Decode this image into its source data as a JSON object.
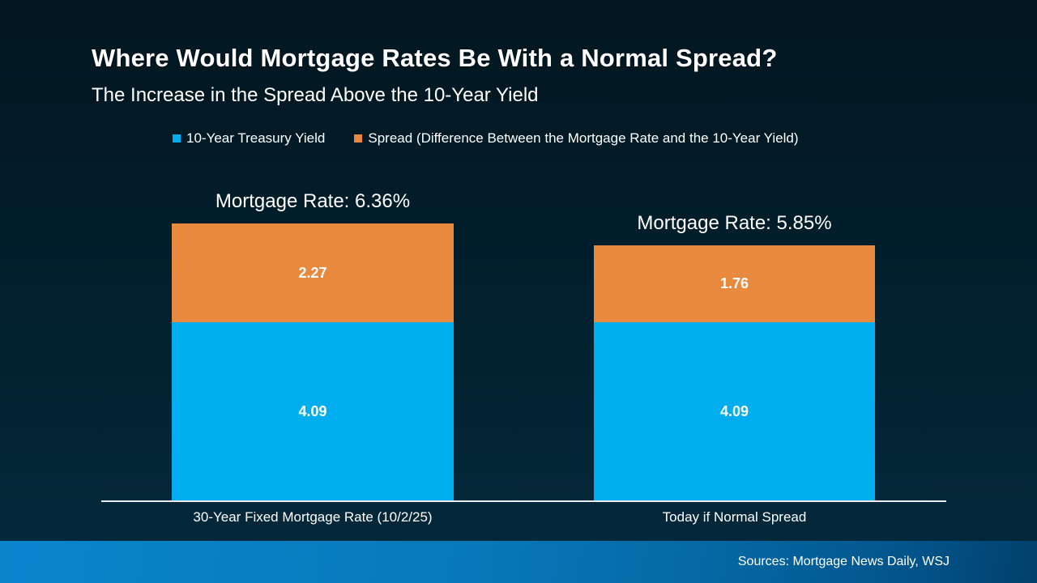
{
  "chart_data": {
    "type": "bar",
    "stacked": true,
    "title": "Where Would Mortgage Rates Be With a Normal Spread?",
    "subtitle": "The Increase in the Spread Above the 10-Year Yield",
    "grid": false,
    "legend_position": "top",
    "legend": [
      {
        "label": "10-Year Treasury Yield",
        "color": "#00aeef"
      },
      {
        "label": "Spread (Difference Between the Mortgage Rate and the 10-Year Yield)",
        "color": "#e8893e"
      }
    ],
    "categories": [
      "30-Year Fixed Mortgage Rate (10/2/25)",
      "Today if Normal Spread"
    ],
    "series": [
      {
        "name": "10-Year Treasury Yield",
        "color": "#00aeef",
        "values": [
          4.09,
          4.09
        ]
      },
      {
        "name": "Spread (Difference Between the Mortgage Rate and the 10-Year Yield)",
        "color": "#e8893e",
        "values": [
          2.27,
          1.76
        ]
      }
    ],
    "bars": [
      {
        "category": "30-Year Fixed Mortgage Rate (10/2/25)",
        "total_label": "Mortgage Rate: 6.36%",
        "treasury_value": 4.09,
        "spread_value": 2.27
      },
      {
        "category": "Today if Normal Spread",
        "total_label": "Mortgage Rate: 5.85%",
        "treasury_value": 4.09,
        "spread_value": 1.76
      }
    ]
  },
  "colors": {
    "treasury_blue": "#00aeef",
    "spread_orange": "#e8893e",
    "background_top": "#021620",
    "background_bottom": "#04293c",
    "footer_left": "#0a85cd",
    "footer_right": "#02406b",
    "axis_line": "#e7edf2"
  },
  "footer": {
    "sources": "Sources: Mortgage News Daily, WSJ"
  }
}
